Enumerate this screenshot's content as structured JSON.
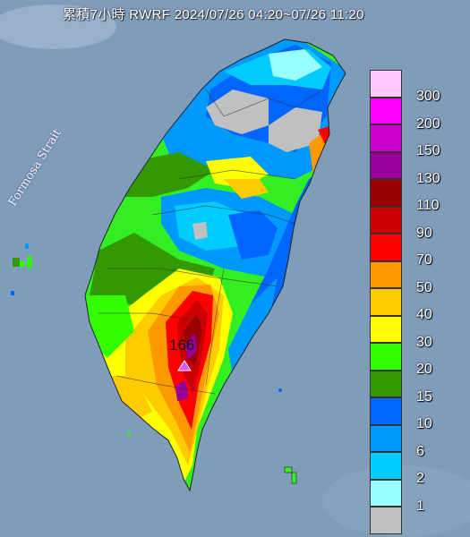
{
  "title": "累積7小時 RWRF 2024/07/26 04:20~07/26 11:20",
  "strait_label": "Formosa Strait",
  "max_marker": {
    "value": "166",
    "symbol": "purple-triangle"
  },
  "legend": {
    "unit": "",
    "levels": [
      {
        "label": "300",
        "color": "#ffc8ff"
      },
      {
        "label": "200",
        "color": "#ff00ff"
      },
      {
        "label": "150",
        "color": "#cc00cc"
      },
      {
        "label": "130",
        "color": "#990099"
      },
      {
        "label": "110",
        "color": "#990000"
      },
      {
        "label": "90",
        "color": "#cc0000"
      },
      {
        "label": "70",
        "color": "#ff0000"
      },
      {
        "label": "50",
        "color": "#ff9900"
      },
      {
        "label": "40",
        "color": "#ffcc00"
      },
      {
        "label": "30",
        "color": "#ffff00"
      },
      {
        "label": "20",
        "color": "#33ff00"
      },
      {
        "label": "15",
        "color": "#339900"
      },
      {
        "label": "10",
        "color": "#0066ff"
      },
      {
        "label": "6",
        "color": "#0099ff"
      },
      {
        "label": "2",
        "color": "#00ccff"
      },
      {
        "label": "1",
        "color": "#99ffff"
      },
      {
        "label": "",
        "color": "#c0c0c0"
      }
    ]
  }
}
